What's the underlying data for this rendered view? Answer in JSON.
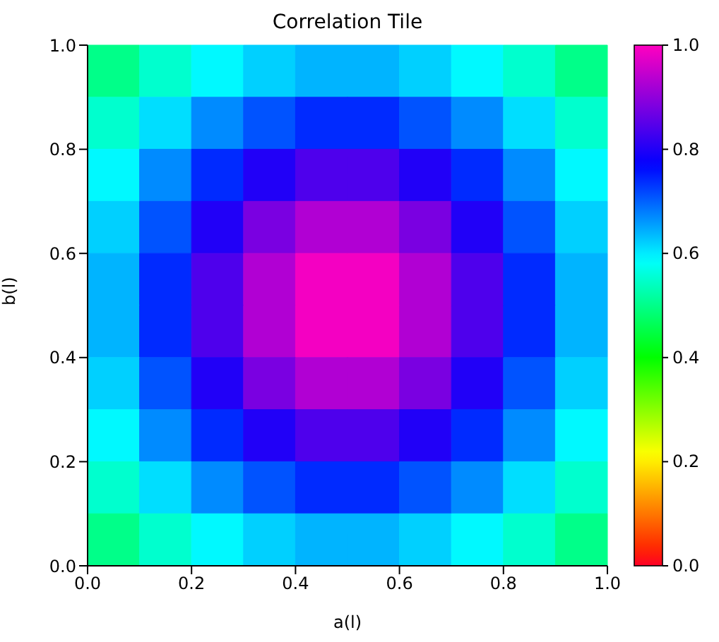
{
  "chart_data": {
    "type": "heatmap",
    "title": "Correlation Tile",
    "xlabel": "a(l)",
    "ylabel": "b(l)",
    "xlim": [
      0,
      1
    ],
    "ylim": [
      0,
      1
    ],
    "xticks": [
      {
        "value": 0,
        "label": "0.0"
      },
      {
        "value": 0.2,
        "label": "0.2"
      },
      {
        "value": 0.4,
        "label": "0.4"
      },
      {
        "value": 0.6,
        "label": "0.6"
      },
      {
        "value": 0.8,
        "label": "0.8"
      },
      {
        "value": 1,
        "label": "1.0"
      }
    ],
    "yticks": [
      {
        "value": 0,
        "label": "0.0"
      },
      {
        "value": 0.2,
        "label": "0.2"
      },
      {
        "value": 0.4,
        "label": "0.4"
      },
      {
        "value": 0.6,
        "label": "0.6"
      },
      {
        "value": 0.8,
        "label": "0.8"
      },
      {
        "value": 1,
        "label": "1.0"
      }
    ],
    "clim": [
      0,
      1
    ],
    "cticks": [
      {
        "value": 0,
        "label": "0.0"
      },
      {
        "value": 0.2,
        "label": "0.2"
      },
      {
        "value": 0.4,
        "label": "0.4"
      },
      {
        "value": 0.6,
        "label": "0.6"
      },
      {
        "value": 0.8,
        "label": "0.8"
      },
      {
        "value": 1,
        "label": "1.0"
      }
    ],
    "cells": [
      [
        0.5,
        0.55,
        0.59,
        0.62,
        0.64,
        0.64,
        0.62,
        0.59,
        0.55,
        0.5
      ],
      [
        0.55,
        0.61,
        0.67,
        0.71,
        0.74,
        0.74,
        0.71,
        0.67,
        0.61,
        0.55
      ],
      [
        0.59,
        0.67,
        0.74,
        0.8,
        0.84,
        0.84,
        0.8,
        0.74,
        0.67,
        0.59
      ],
      [
        0.62,
        0.71,
        0.8,
        0.88,
        0.93,
        0.93,
        0.88,
        0.8,
        0.71,
        0.62
      ],
      [
        0.64,
        0.74,
        0.84,
        0.93,
        0.99,
        0.99,
        0.93,
        0.84,
        0.74,
        0.64
      ],
      [
        0.64,
        0.74,
        0.84,
        0.93,
        0.99,
        0.99,
        0.93,
        0.84,
        0.74,
        0.64
      ],
      [
        0.62,
        0.71,
        0.8,
        0.88,
        0.93,
        0.93,
        0.88,
        0.8,
        0.71,
        0.62
      ],
      [
        0.59,
        0.67,
        0.74,
        0.8,
        0.84,
        0.84,
        0.8,
        0.74,
        0.67,
        0.59
      ],
      [
        0.55,
        0.61,
        0.67,
        0.71,
        0.74,
        0.74,
        0.71,
        0.67,
        0.61,
        0.55
      ],
      [
        0.5,
        0.55,
        0.59,
        0.62,
        0.64,
        0.64,
        0.62,
        0.59,
        0.55,
        0.5
      ]
    ]
  }
}
